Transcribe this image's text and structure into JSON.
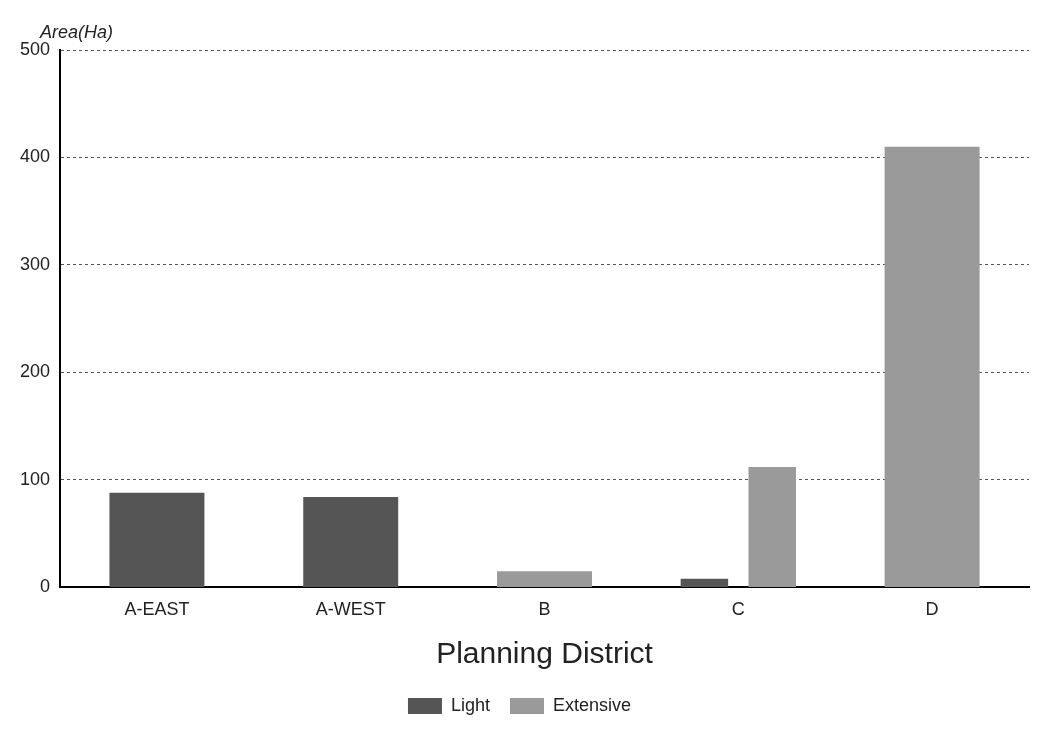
{
  "chart_data": {
    "type": "bar",
    "ylabel": "Area(Ha)",
    "xlabel": "Planning District",
    "categories": [
      "A-EAST",
      "A-WEST",
      "B",
      "C",
      "D"
    ],
    "series": [
      {
        "name": "Light",
        "color": "#555555",
        "values": [
          88,
          84,
          null,
          8,
          null
        ]
      },
      {
        "name": "Extensive",
        "color": "#9a9a9a",
        "values": [
          null,
          null,
          15,
          112,
          410
        ]
      }
    ],
    "ylim": [
      0,
      500
    ],
    "yticks": [
      0,
      100,
      200,
      300,
      400,
      500
    ],
    "grid": "y",
    "legend": "bottom"
  }
}
